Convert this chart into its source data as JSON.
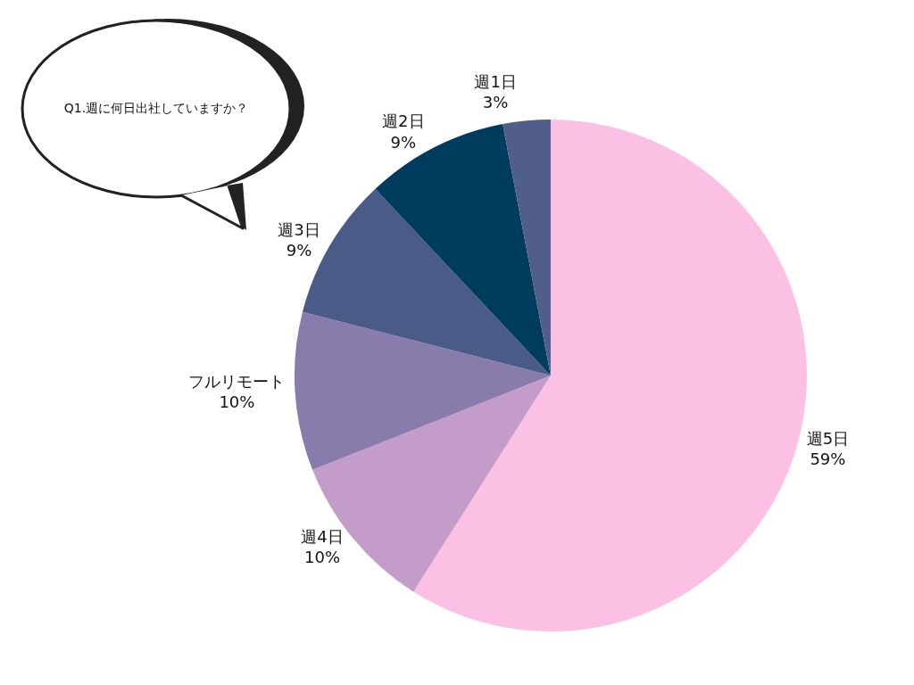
{
  "chart_data": {
    "type": "pie",
    "title": "Q1.週に何日出社していますか？",
    "categories": [
      "週5日",
      "週4日",
      "フルリモート",
      "週3日",
      "週2日",
      "週1日"
    ],
    "values": [
      59,
      10,
      10,
      9,
      9,
      3
    ],
    "value_labels": [
      "59%",
      "10%",
      "10%",
      "9%",
      "9%",
      "3%"
    ],
    "colors": [
      "#fbc0e3",
      "#c49cc9",
      "#897bac",
      "#4b5b88",
      "#003c5e",
      "#515e8a"
    ]
  }
}
